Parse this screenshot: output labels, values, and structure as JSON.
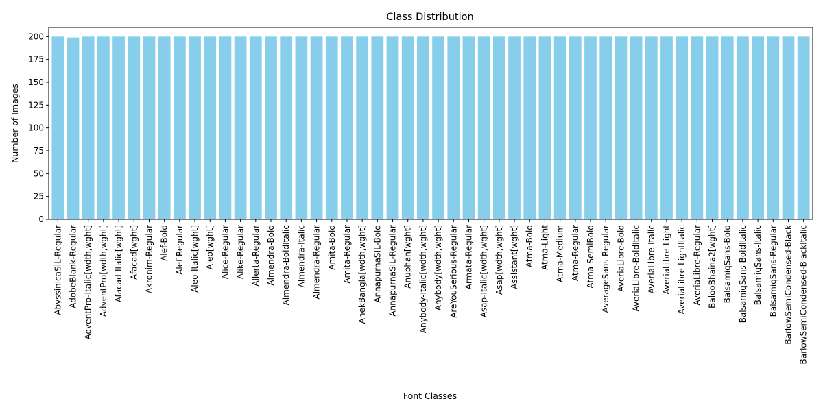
{
  "chart_data": {
    "type": "bar",
    "title": "Class Distribution",
    "xlabel": "Font Classes",
    "ylabel": "Number of Images",
    "ylim": [
      0,
      210
    ],
    "yticks": [
      0,
      25,
      50,
      75,
      100,
      125,
      150,
      175,
      200
    ],
    "grid": false,
    "bar_color": "#87ceeb",
    "categories": [
      "AbyssinicaSIL-Regular",
      "AdobeBlank-Regular",
      "AdventPro-Italic[wdth,wght]",
      "AdventPro[wdth,wght]",
      "Afacad-Italic[wght]",
      "Afacad[wght]",
      "Akronim-Regular",
      "Alef-Bold",
      "Alef-Regular",
      "Aleo-Italic[wght]",
      "Aleo[wght]",
      "Alice-Regular",
      "Alike-Regular",
      "Allerta-Regular",
      "Almendra-Bold",
      "Almendra-BoldItalic",
      "Almendra-Italic",
      "Almendra-Regular",
      "Amita-Bold",
      "Amita-Regular",
      "AnekBangla[wdth,wght]",
      "AnnapurnaSIL-Bold",
      "AnnapurnaSIL-Regular",
      "Anuphan[wght]",
      "Anybody-Italic[wdth,wght]",
      "Anybody[wdth,wght]",
      "AreYouSerious-Regular",
      "Armata-Regular",
      "Asap-Italic[wdth,wght]",
      "Asap[wdth,wght]",
      "Assistant[wght]",
      "Atma-Bold",
      "Atma-Light",
      "Atma-Medium",
      "Atma-Regular",
      "Atma-SemiBold",
      "AverageSans-Regular",
      "AveriaLibre-Bold",
      "AveriaLibre-BoldItalic",
      "AveriaLibre-Italic",
      "AveriaLibre-Light",
      "AveriaLibre-LightItalic",
      "AveriaLibre-Regular",
      "BalooBhaina2[wght]",
      "BalsamiqSans-Bold",
      "BalsamiqSans-BoldItalic",
      "BalsamiqSans-Italic",
      "BalsamiqSans-Regular",
      "BarlowSemiCondensed-Black",
      "BarlowSemiCondensed-BlackItalic"
    ],
    "values": [
      200,
      199,
      200,
      200,
      200,
      200,
      200,
      200,
      200,
      200,
      200,
      200,
      200,
      200,
      200,
      200,
      200,
      200,
      200,
      200,
      200,
      200,
      200,
      200,
      200,
      200,
      200,
      200,
      200,
      200,
      200,
      200,
      200,
      200,
      200,
      200,
      200,
      200,
      200,
      200,
      200,
      200,
      200,
      200,
      200,
      200,
      200,
      200,
      200,
      200
    ]
  }
}
